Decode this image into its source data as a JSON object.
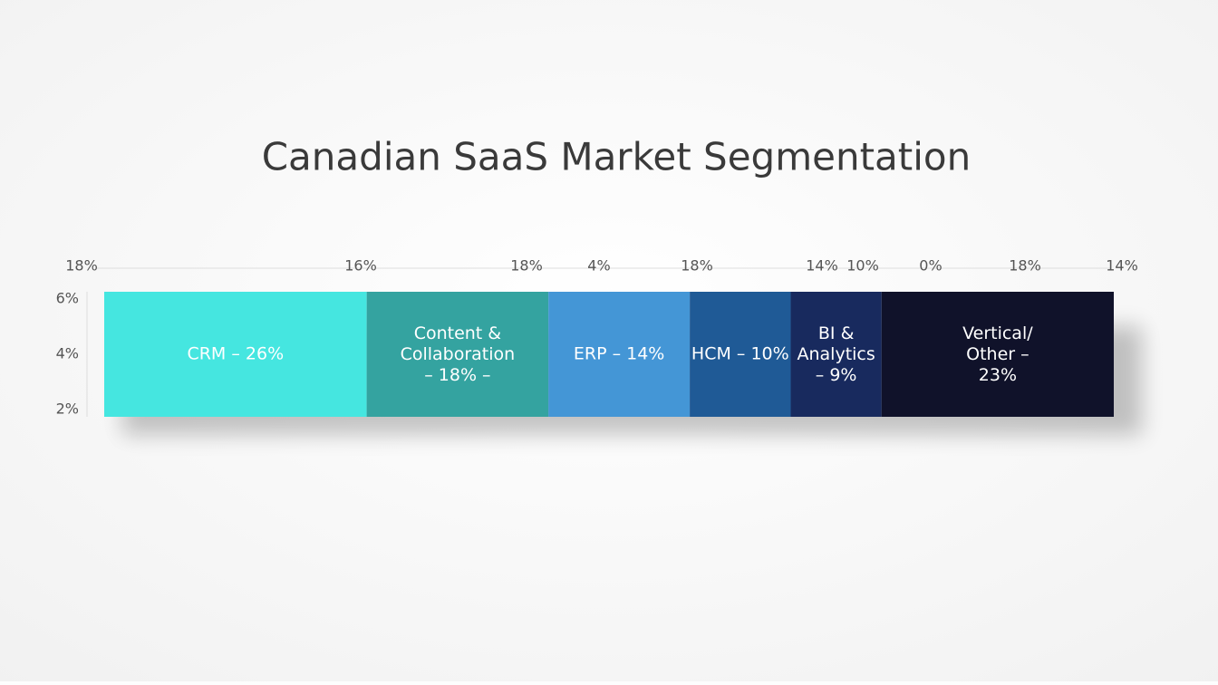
{
  "chart_data": {
    "type": "stacked-bar",
    "title": "Canadian SaaS Market Segmentation",
    "categories": [
      "CRM",
      "Content & Collaboration",
      "ERP",
      "HCM",
      "BI & Analytics",
      "Vertical/ Other"
    ],
    "values": [
      26,
      18,
      14,
      10,
      9,
      23
    ],
    "value_labels": [
      "CRM – 26%",
      "Content &\nCollaboration\n– 18% –",
      "ERP – 14%",
      "HCM – 10%",
      "BI &\nAnalytics\n– 9%",
      "Vertical/\nOther –\n23%"
    ],
    "colors": [
      "#45e6e0",
      "#34a3a0",
      "#4496d6",
      "#1f5a96",
      "#182a5e",
      "#10122a"
    ],
    "top_labels": [
      "18%",
      "16%",
      "18%",
      "4%",
      "18%",
      "14%",
      "10%",
      "0%",
      "18%",
      "14%"
    ],
    "left_labels": [
      "6%",
      "4%",
      "2%"
    ]
  }
}
